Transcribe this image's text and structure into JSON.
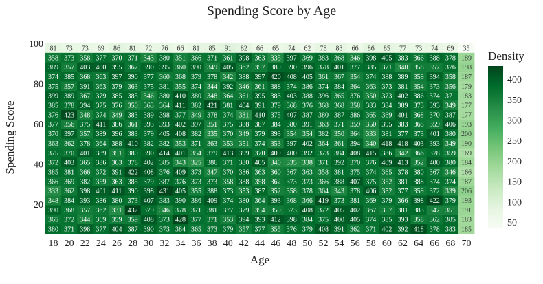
{
  "chart_data": {
    "type": "heatmap",
    "title": "Spending Score by Age",
    "xlabel": "Age",
    "ylabel": "Spending Score",
    "x_ticks": [
      18,
      20,
      22,
      24,
      26,
      28,
      30,
      32,
      34,
      36,
      38,
      40,
      42,
      44,
      46,
      48,
      50,
      52,
      54,
      56,
      58,
      60,
      62,
      64,
      66,
      68,
      70
    ],
    "y_ticks": [
      20,
      40,
      60,
      80,
      100
    ],
    "x_range": [
      18,
      70
    ],
    "y_range": [
      10,
      100
    ],
    "colorbar": {
      "title": "Density",
      "ticks": [
        50,
        100,
        150,
        200,
        250,
        300,
        350,
        400
      ],
      "range": [
        35,
        432
      ],
      "low_color": "#f7fcf5",
      "high_color": "#00441b"
    },
    "note": "Cell values listed top row (spending score ~100) to bottom row (~10); columns are ages 18 through 70.",
    "values": [
      [
        81,
        73,
        73,
        69,
        86,
        81,
        72,
        76,
        66,
        81,
        85,
        91,
        82,
        66,
        65,
        74,
        62,
        78,
        83,
        66,
        86,
        85,
        77,
        73,
        74,
        69,
        35
      ],
      [
        358,
        373,
        358,
        377,
        370,
        371,
        343,
        380,
        351,
        366,
        371,
        361,
        398,
        363,
        335,
        397,
        369,
        383,
        368,
        346,
        398,
        405,
        383,
        366,
        388,
        378,
        189
      ],
      [
        389,
        357,
        403,
        400,
        395,
        367,
        390,
        395,
        360,
        390,
        349,
        405,
        362,
        357,
        389,
        390,
        396,
        378,
        401,
        377,
        385,
        371,
        340,
        358,
        357,
        376,
        198
      ],
      [
        374,
        385,
        368,
        363,
        397,
        390,
        377,
        360,
        368,
        379,
        378,
        342,
        388,
        397,
        420,
        408,
        405,
        361,
        367,
        354,
        374,
        388,
        389,
        359,
        394,
        358,
        187
      ],
      [
        375,
        357,
        391,
        363,
        379,
        363,
        375,
        381,
        355,
        374,
        344,
        392,
        346,
        361,
        388,
        374,
        386,
        374,
        384,
        364,
        363,
        373,
        381,
        354,
        373,
        356,
        179
      ],
      [
        399,
        389,
        367,
        379,
        385,
        385,
        346,
        380,
        410,
        380,
        348,
        364,
        361,
        395,
        383,
        403,
        388,
        396,
        365,
        376,
        350,
        373,
        402,
        386,
        374,
        371,
        183
      ],
      [
        385,
        378,
        394,
        375,
        376,
        350,
        363,
        364,
        411,
        382,
        421,
        381,
        404,
        391,
        379,
        368,
        376,
        368,
        368,
        358,
        383,
        384,
        389,
        373,
        393,
        349,
        177
      ],
      [
        376,
        423,
        348,
        374,
        349,
        383,
        389,
        398,
        377,
        349,
        378,
        374,
        331,
        410,
        375,
        407,
        387,
        380,
        387,
        386,
        365,
        369,
        401,
        368,
        370,
        387,
        177
      ],
      [
        377,
        356,
        375,
        411,
        386,
        361,
        393,
        393,
        402,
        397,
        351,
        375,
        388,
        387,
        384,
        380,
        391,
        363,
        371,
        359,
        350,
        395,
        383,
        368,
        359,
        406,
        193
      ],
      [
        370,
        397,
        357,
        389,
        396,
        383,
        379,
        405,
        408,
        382,
        335,
        370,
        349,
        379,
        393,
        354,
        354,
        382,
        350,
        364,
        333,
        381,
        377,
        373,
        401,
        380,
        200
      ],
      [
        363,
        362,
        378,
        364,
        388,
        410,
        382,
        382,
        353,
        371,
        363,
        353,
        351,
        374,
        353,
        397,
        402,
        364,
        361,
        394,
        340,
        418,
        418,
        403,
        393,
        349,
        190
      ],
      [
        375,
        370,
        401,
        389,
        351,
        380,
        390,
        414,
        401,
        354,
        379,
        413,
        399,
        370,
        409,
        400,
        392,
        373,
        384,
        408,
        415,
        386,
        342,
        366,
        378,
        359,
        169
      ],
      [
        372,
        403,
        365,
        386,
        363,
        378,
        402,
        385,
        343,
        325,
        386,
        371,
        380,
        405,
        340,
        335,
        338,
        371,
        392,
        370,
        376,
        409,
        413,
        352,
        400,
        380,
        184
      ],
      [
        385,
        381,
        366,
        372,
        391,
        422,
        408,
        376,
        409,
        373,
        347,
        370,
        386,
        363,
        360,
        367,
        363,
        358,
        381,
        375,
        374,
        365,
        378,
        380,
        367,
        346,
        166
      ],
      [
        366,
        369,
        382,
        359,
        363,
        385,
        379,
        387,
        376,
        373,
        373,
        358,
        388,
        358,
        362,
        373,
        373,
        366,
        388,
        407,
        375,
        352,
        381,
        388,
        374,
        374,
        187
      ],
      [
        333,
        362,
        398,
        401,
        411,
        390,
        398,
        431,
        405,
        355,
        388,
        373,
        353,
        387,
        352,
        358,
        378,
        364,
        343,
        378,
        406,
        352,
        377,
        359,
        372,
        339,
        206
      ],
      [
        348,
        384,
        393,
        386,
        380,
        373,
        407,
        383,
        390,
        386,
        409,
        374,
        380,
        364,
        393,
        368,
        366,
        419,
        373,
        381,
        369,
        379,
        366,
        398,
        422,
        379,
        193
      ],
      [
        390,
        368,
        357,
        362,
        331,
        432,
        379,
        346,
        378,
        371,
        381,
        377,
        379,
        354,
        359,
        373,
        408,
        372,
        405,
        402,
        367,
        357,
        381,
        383,
        347,
        351,
        191
      ],
      [
        365,
        372,
        344,
        369,
        359,
        359,
        408,
        373,
        428,
        377,
        371,
        353,
        394,
        393,
        412,
        398,
        384,
        375,
        400,
        405,
        374,
        385,
        393,
        358,
        362,
        385,
        183
      ],
      [
        380,
        371,
        398,
        377,
        404,
        387,
        390,
        373,
        384,
        365,
        373,
        379,
        357,
        377,
        355,
        376,
        379,
        408,
        391,
        362,
        371,
        402,
        392,
        418,
        378,
        383,
        185
      ]
    ]
  }
}
